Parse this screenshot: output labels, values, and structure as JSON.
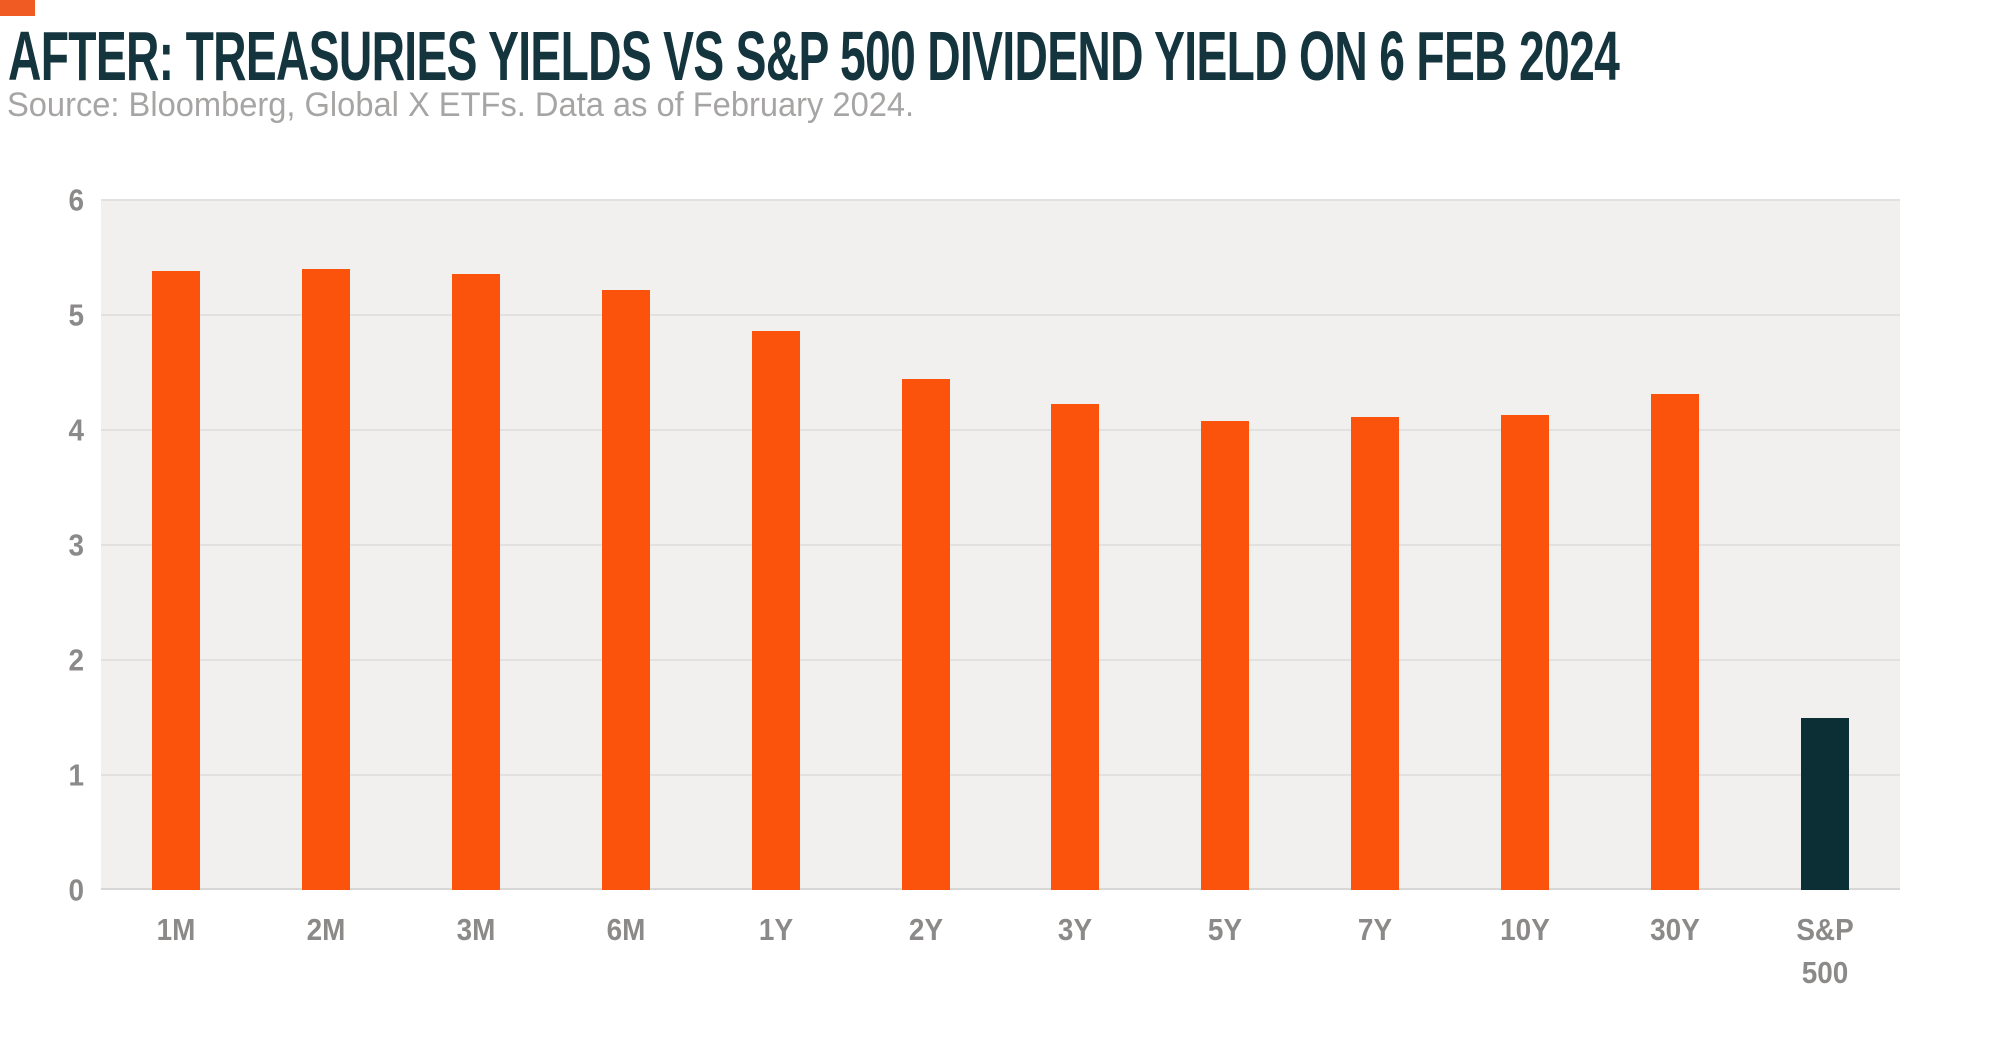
{
  "chart_data": {
    "type": "bar",
    "title": "AFTER: TREASURIES YIELDS VS S&P 500 DIVIDEND YIELD ON 6 FEB 2024",
    "subtitle": "Source: Bloomberg, Global X ETFs. Data as of February 2024.",
    "categories": [
      "1M",
      "2M",
      "3M",
      "6M",
      "1Y",
      "2Y",
      "3Y",
      "5Y",
      "7Y",
      "10Y",
      "30Y",
      "S&P 500"
    ],
    "values": [
      5.38,
      5.4,
      5.36,
      5.22,
      4.86,
      4.44,
      4.23,
      4.08,
      4.11,
      4.13,
      4.31,
      1.5
    ],
    "unit": "percent",
    "xlabel": "",
    "ylabel": "",
    "ylim": [
      0,
      6
    ],
    "yticks": [
      0,
      1,
      2,
      3,
      4,
      5,
      6
    ],
    "grid": true,
    "legend_position": "none",
    "bar_colors": [
      "#FC530C",
      "#FC530C",
      "#FC530C",
      "#FC530C",
      "#FC530C",
      "#FC530C",
      "#FC530C",
      "#FC530C",
      "#FC530C",
      "#FC530C",
      "#FC530C",
      "#0C2F36"
    ]
  },
  "style": {
    "page_bg": "#FFFFFF",
    "accent_color": "#F05B24",
    "title_color": "#14343E",
    "subtitle_color": "#A7A5A4",
    "plot_bg": "#F1F0EE",
    "gridline_color": "#E2E1DF",
    "baseline_color": "#D8D7D5",
    "axis_label_color": "#8C8A89"
  }
}
